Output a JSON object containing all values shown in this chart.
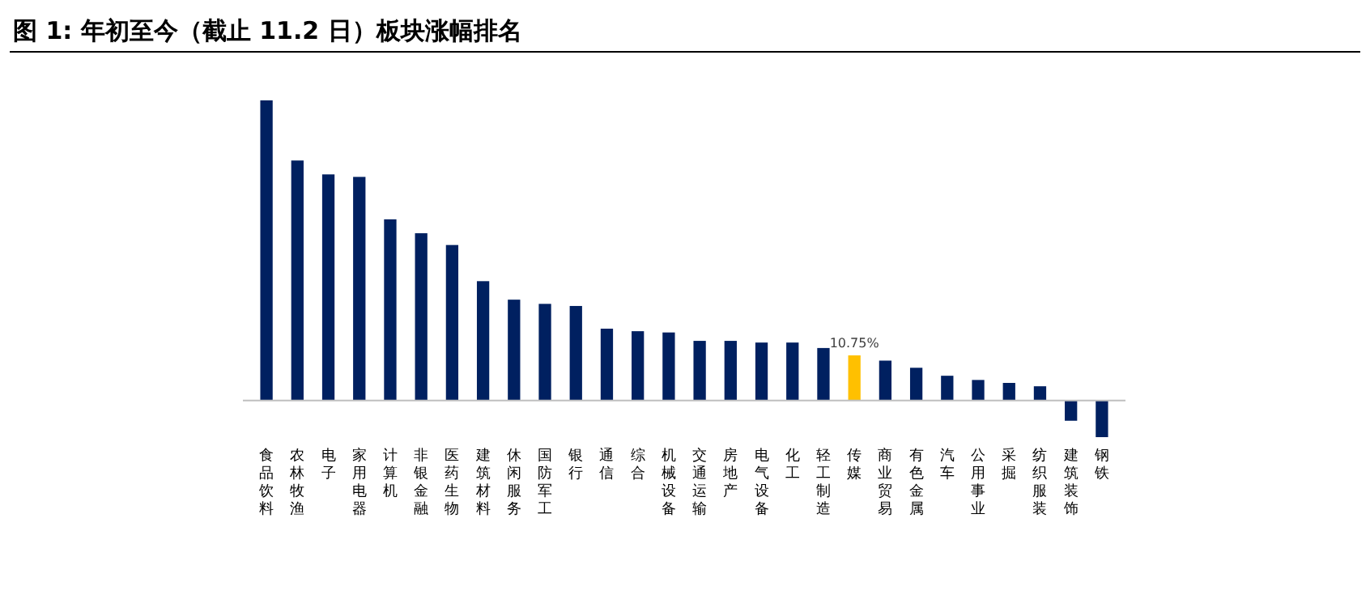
{
  "chart_data": {
    "type": "bar",
    "title": "图 1: 年初至今（截止 11.2 日）板块涨幅排名",
    "categories": [
      "食品饮料",
      "农林牧渔",
      "电子",
      "家用电器",
      "计算机",
      "非银金融",
      "医药生物",
      "建筑材料",
      "休闲服务",
      "国防军工",
      "银行",
      "通信",
      "综合",
      "机械设备",
      "交通运输",
      "房地产",
      "电气设备",
      "化工",
      "轻工制造",
      "传媒",
      "商业贸易",
      "有色金属",
      "汽车",
      "公用事业",
      "采掘",
      "纺织服装",
      "建筑装饰",
      "钢铁"
    ],
    "values": [
      71.4,
      57.1,
      53.8,
      53.2,
      43.1,
      39.8,
      37.0,
      28.4,
      24.0,
      23.0,
      22.5,
      17.1,
      16.5,
      16.2,
      14.2,
      14.2,
      13.8,
      13.8,
      12.5,
      10.75,
      9.5,
      7.8,
      5.9,
      4.9,
      4.2,
      3.4,
      -4.8,
      -8.7
    ],
    "colors": [
      "#002060",
      "#002060",
      "#002060",
      "#002060",
      "#002060",
      "#002060",
      "#002060",
      "#002060",
      "#002060",
      "#002060",
      "#002060",
      "#002060",
      "#002060",
      "#002060",
      "#002060",
      "#002060",
      "#002060",
      "#002060",
      "#002060",
      "#ffc000",
      "#002060",
      "#002060",
      "#002060",
      "#002060",
      "#002060",
      "#002060",
      "#002060",
      "#002060"
    ],
    "value_labels": [
      null,
      null,
      null,
      null,
      null,
      null,
      null,
      null,
      null,
      null,
      null,
      null,
      null,
      null,
      null,
      null,
      null,
      null,
      null,
      "10.75%",
      null,
      null,
      null,
      null,
      null,
      null,
      null,
      null
    ],
    "grid": false
  }
}
